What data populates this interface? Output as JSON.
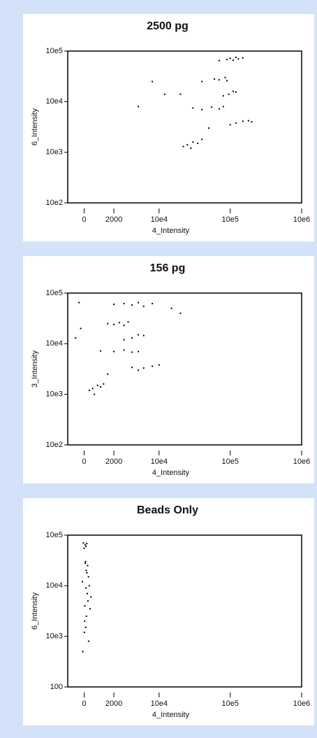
{
  "chart_data": [
    {
      "type": "scatter",
      "title": "2500 pg",
      "x_label": "4_Intensity",
      "y_label": "6_Intensity",
      "color": "#000000",
      "xscale": "asinh",
      "yscale": "log",
      "xlim": [
        -1000,
        1000000
      ],
      "ylim": [
        100,
        100000
      ],
      "xticks": [
        0,
        2000,
        {
          "value": 10000,
          "label": "10e4"
        },
        {
          "value": 100000,
          "label": "10e5"
        },
        {
          "value": 1000000,
          "label": "10e6"
        }
      ],
      "yticks": [
        {
          "value": 100,
          "label": "10e2"
        },
        {
          "value": 1000,
          "label": "10e3"
        },
        {
          "value": 10000,
          "label": "10e4"
        },
        {
          "value": 100000,
          "label": "10e5"
        }
      ],
      "x": [
        90000,
        100000,
        120000,
        130000,
        110000,
        150000,
        70000,
        70000,
        85000,
        90000,
        60000,
        40000,
        95000,
        110000,
        120000,
        80000,
        20000,
        40000,
        55000,
        70000,
        80000,
        30000,
        120000,
        150000,
        180000,
        100000,
        200000,
        25000,
        30000,
        35000,
        28000,
        40000,
        22000,
        8000,
        12000,
        5000,
        50000
      ],
      "values": [
        68000,
        72000,
        75000,
        70000,
        66000,
        73000,
        65000,
        27000,
        30000,
        26000,
        28000,
        25000,
        14000,
        16000,
        15500,
        13000,
        14000,
        7000,
        7800,
        7200,
        8000,
        7500,
        3800,
        4100,
        4200,
        3500,
        4000,
        1400,
        1600,
        1500,
        1200,
        1800,
        1300,
        25000,
        14000,
        8000,
        3000
      ]
    },
    {
      "type": "scatter",
      "title": "156 pg",
      "x_label": "4_Intensity",
      "y_label": "3_Intensity",
      "color": "#000000",
      "xscale": "asinh",
      "yscale": "log",
      "xlim": [
        -1000,
        1000000
      ],
      "ylim": [
        100,
        100000
      ],
      "xticks": [
        0,
        2000,
        {
          "value": 10000,
          "label": "10e4"
        },
        {
          "value": 100000,
          "label": "10e5"
        },
        {
          "value": 1000000,
          "label": "10e6"
        }
      ],
      "yticks": [
        {
          "value": 100,
          "label": "10e2"
        },
        {
          "value": 1000,
          "label": "10e3"
        },
        {
          "value": 10000,
          "label": "10e4"
        },
        {
          "value": 100000,
          "label": "10e5"
        }
      ],
      "x": [
        3000,
        4000,
        5000,
        2000,
        6000,
        -300,
        8000,
        2000,
        2500,
        3000,
        1500,
        3500,
        4000,
        5000,
        6000,
        3000,
        -500,
        2000,
        3000,
        4000,
        1000,
        5000,
        6000,
        8000,
        10000,
        5000,
        4000,
        500,
        800,
        1000,
        300,
        1200,
        600,
        15000,
        20000,
        1500,
        -200
      ],
      "values": [
        62000,
        58000,
        65000,
        60000,
        55000,
        65000,
        62000,
        24000,
        26000,
        23000,
        25000,
        27000,
        13000,
        15000,
        14500,
        12000,
        13000,
        7000,
        7500,
        6800,
        7200,
        7000,
        3300,
        3600,
        3800,
        3000,
        3400,
        1300,
        1500,
        1400,
        1200,
        1600,
        1000,
        50000,
        40000,
        2500,
        20000
      ]
    },
    {
      "type": "scatter",
      "title": "Beads Only",
      "x_label": "4_Intensity",
      "y_label": "6_Intensity",
      "color": "#000000",
      "xscale": "asinh",
      "yscale": "log",
      "xlim": [
        -1000,
        1000000
      ],
      "ylim": [
        100,
        100000
      ],
      "xticks": [
        0,
        2000,
        {
          "value": 10000,
          "label": "10e4"
        },
        {
          "value": 100000,
          "label": "10e5"
        },
        {
          "value": 1000000,
          "label": "10e6"
        }
      ],
      "yticks": [
        100,
        {
          "value": 1000,
          "label": "10e3"
        },
        {
          "value": 10000,
          "label": "10e4"
        },
        {
          "value": 100000,
          "label": "10e5"
        }
      ],
      "x": [
        -50,
        50,
        100,
        0,
        150,
        80,
        200,
        120,
        250,
        60,
        300,
        100,
        180,
        -100,
        220,
        40,
        350,
        130,
        90,
        10,
        260,
        -80,
        160,
        400,
        30
      ],
      "values": [
        70000,
        65000,
        60000,
        55000,
        68000,
        30000,
        25000,
        20000,
        15000,
        28000,
        10000,
        9000,
        7000,
        12000,
        5000,
        4000,
        3500,
        2500,
        1500,
        1200,
        800,
        500,
        18000,
        6000,
        2000
      ]
    }
  ]
}
